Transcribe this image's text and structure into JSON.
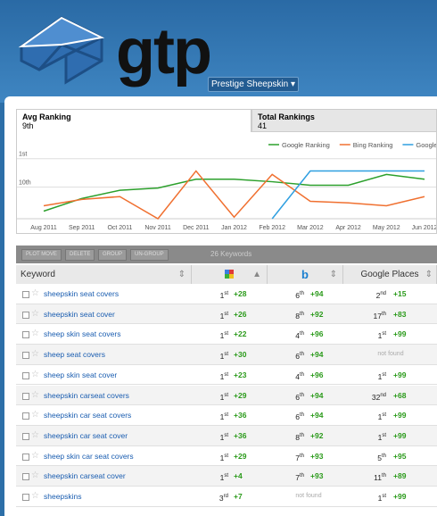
{
  "header": {
    "logo": "gtp",
    "account": "Prestige Sheepskin"
  },
  "tabs": [
    {
      "title": "Avg Ranking",
      "value": "9th"
    },
    {
      "title": "Total Rankings",
      "value": "41"
    }
  ],
  "chart": {
    "type": "line",
    "categories": [
      "Aug 2011",
      "Sep 2011",
      "Oct 2011",
      "Nov 2011",
      "Dec 2011",
      "Jan 2012",
      "Feb 2012",
      "Mar 2012",
      "Apr 2012",
      "May 2012",
      "Jun 2012"
    ],
    "series": [
      {
        "name": "Google Ranking",
        "color": "#2ca02c",
        "values": [
          17.6,
          13.6,
          11,
          10.3,
          7.5,
          7.5,
          8.3,
          9.4,
          9.4,
          6,
          7.5
        ]
      },
      {
        "name": "Bing Ranking",
        "color": "#f07030",
        "values": [
          15.9,
          13.9,
          13,
          20,
          4.9,
          19.5,
          6,
          14.5,
          15,
          15.9,
          13
        ]
      },
      {
        "name": "Google Places",
        "color": "#2f9fe0",
        "values": [
          null,
          null,
          null,
          null,
          null,
          null,
          20,
          4.9,
          4.9,
          4.9,
          4.9
        ]
      }
    ],
    "ylim": [
      -4,
      20
    ],
    "yticks": [
      {
        "value": 1,
        "label": "1st"
      },
      {
        "value": 10,
        "label": "10th"
      }
    ]
  },
  "toolbar": {
    "buttons": [
      "PLOT MOVE",
      "DELETE",
      "GROUP",
      "UN-GROUP"
    ],
    "count": "26 Keywords"
  },
  "table": {
    "columns": [
      "Keyword",
      "Google Places"
    ],
    "rows": [
      [
        "sheepskin seat covers",
        "1st",
        "+28",
        "6th",
        "+94",
        "2nd",
        "+15"
      ],
      [
        "sheepskin seat cover",
        "1st",
        "+26",
        "8th",
        "+92",
        "17th",
        "+83"
      ],
      [
        "sheep skin seat covers",
        "1st",
        "+22",
        "4th",
        "+96",
        "1st",
        "+99"
      ],
      [
        "sheep seat covers",
        "1st",
        "+30",
        "6th",
        "+94",
        "not found",
        null
      ],
      [
        "sheep skin seat cover",
        "1st",
        "+23",
        "4th",
        "+96",
        "1st",
        "+99"
      ],
      [
        "sheepskin carseat covers",
        "1st",
        "+29",
        "6th",
        "+94",
        "32nd",
        "+68"
      ],
      [
        "sheepskin car seat covers",
        "1st",
        "+36",
        "6th",
        "+94",
        "1st",
        "+99"
      ],
      [
        "sheepskin car seat cover",
        "1st",
        "+36",
        "8th",
        "+92",
        "1st",
        "+99"
      ],
      [
        "sheep skin car seat covers",
        "1st",
        "+29",
        "7th",
        "+93",
        "5th",
        "+95"
      ],
      [
        "sheepskin carseat cover",
        "1st",
        "+4",
        "7th",
        "+93",
        "11th",
        "+89"
      ],
      [
        "sheepskins",
        "3rd",
        "+7",
        "not found",
        null,
        "1st",
        "+99"
      ]
    ]
  }
}
